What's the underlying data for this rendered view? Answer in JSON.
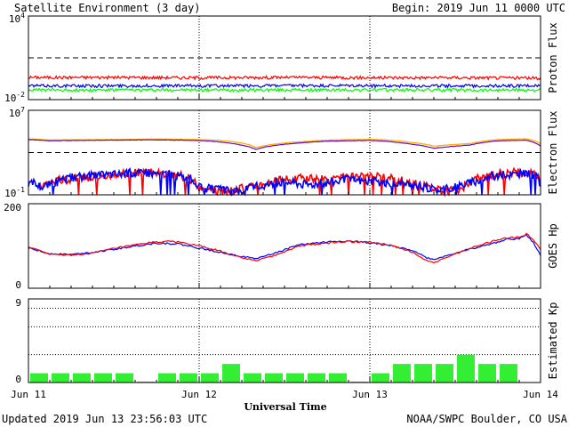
{
  "header": {
    "title": "Satellite Environment (3 day)",
    "begin": "Begin:  2019 Jun 11 0000 UTC"
  },
  "footer": {
    "updated": "Updated 2019 Jun 13 23:56:03 UTC",
    "credit": "NOAA/SWPC Boulder, CO USA"
  },
  "colors": {
    "red": "#ff0000",
    "blue": "#0000ff",
    "green": "#00ff00",
    "orange": "#ffa500",
    "purple": "#6a0dad",
    "kp_bar": "#33ee33"
  },
  "chart_data": [
    {
      "type": "line",
      "ylabel": "Proton Flux",
      "yscale": "log",
      "ylim": [
        0.01,
        10000
      ],
      "y_ticks": [
        {
          "value": 10000,
          "base": "10",
          "exp": "4"
        },
        {
          "value": 0.01,
          "base": "10",
          "exp": "-2"
        }
      ],
      "threshold": 10,
      "x_range_hours": [
        0,
        72
      ],
      "series": [
        {
          "color": "red",
          "x": [
            0,
            12,
            24,
            36,
            48,
            60,
            72
          ],
          "y": [
            0.4,
            0.4,
            0.38,
            0.4,
            0.38,
            0.38,
            0.36
          ]
        },
        {
          "color": "blue",
          "x": [
            0,
            12,
            24,
            36,
            48,
            60,
            72
          ],
          "y": [
            0.1,
            0.1,
            0.1,
            0.1,
            0.1,
            0.1,
            0.1
          ]
        },
        {
          "color": "green",
          "x": [
            0,
            12,
            24,
            36,
            48,
            60,
            72
          ],
          "y": [
            0.05,
            0.05,
            0.05,
            0.05,
            0.05,
            0.05,
            0.05
          ]
        }
      ]
    },
    {
      "type": "line",
      "ylabel": "Electron Flux",
      "yscale": "log",
      "ylim": [
        0.1,
        10000000
      ],
      "y_ticks": [
        {
          "value": 10000000,
          "base": "10",
          "exp": "7"
        },
        {
          "value": 0.1,
          "base": "10",
          "exp": "-1"
        }
      ],
      "threshold": 1000,
      "x_range_hours": [
        0,
        72
      ],
      "series": [
        {
          "color": "orange",
          "x": [
            0,
            3,
            6,
            12,
            18,
            24,
            27,
            30,
            32,
            36,
            42,
            48,
            50,
            54,
            57,
            62,
            66,
            70,
            72
          ],
          "y": [
            20000,
            15000,
            16000,
            17000,
            19000,
            17000,
            14000,
            8000,
            3000,
            8000,
            15000,
            18000,
            16000,
            9000,
            4000,
            7000,
            17000,
            20000,
            7000
          ]
        },
        {
          "color": "purple",
          "x": [
            0,
            3,
            6,
            12,
            18,
            24,
            27,
            30,
            32,
            36,
            42,
            48,
            50,
            54,
            57,
            62,
            66,
            70,
            72
          ],
          "y": [
            17000,
            13000,
            14000,
            15000,
            16000,
            14000,
            10000,
            5000,
            2000,
            6000,
            12000,
            14000,
            12000,
            6000,
            2500,
            5000,
            13000,
            15000,
            4000
          ]
        },
        {
          "color": "red",
          "x": [
            1.5,
            3,
            6,
            9,
            12,
            15,
            18,
            21.5,
            24,
            29,
            32,
            36,
            40,
            42,
            45,
            48,
            52,
            55,
            58,
            61,
            63,
            66,
            69,
            71,
            72
          ],
          "y": [
            0.4,
            2,
            3,
            5,
            8,
            12,
            12,
            6,
            0.3,
            0.2,
            0.8,
            3,
            4,
            2,
            5,
            6,
            2.5,
            0.8,
            0.2,
            0.3,
            3,
            10,
            14,
            11,
            0.5
          ]
        },
        {
          "color": "blue",
          "x": [
            0,
            2,
            4,
            6,
            9,
            12,
            15,
            18,
            21,
            24,
            27,
            30,
            33,
            36,
            39,
            42,
            45,
            48,
            51,
            54,
            57,
            60,
            63,
            66,
            69,
            71,
            72
          ],
          "y": [
            1.5,
            0.6,
            1.5,
            4,
            6,
            10,
            12,
            12,
            7,
            0.5,
            0.3,
            0.2,
            0.8,
            2,
            1,
            1.5,
            3,
            2,
            1.2,
            0.8,
            0.3,
            0.5,
            2,
            7,
            10,
            8,
            0.3
          ]
        }
      ]
    },
    {
      "type": "line",
      "ylabel": "GOES Hp",
      "ylim": [
        0,
        200
      ],
      "y_ticks": [
        200,
        0
      ],
      "x_range_hours": [
        0,
        72
      ],
      "series": [
        {
          "color": "blue",
          "x": [
            0,
            3,
            6,
            9,
            12,
            15,
            18,
            21,
            24,
            27,
            30,
            32,
            35,
            38,
            41,
            44,
            48,
            51,
            54,
            56,
            57,
            59,
            61,
            64,
            67,
            69,
            70,
            71,
            72
          ],
          "y": [
            95,
            82,
            80,
            85,
            92,
            100,
            107,
            105,
            95,
            85,
            75,
            70,
            85,
            103,
            108,
            112,
            108,
            100,
            90,
            72,
            68,
            78,
            88,
            100,
            115,
            118,
            125,
            108,
            78
          ]
        },
        {
          "color": "red",
          "x": [
            0,
            3,
            6,
            9,
            12,
            15,
            18,
            21,
            24,
            27,
            30,
            32,
            35,
            38,
            41,
            44,
            48,
            51,
            54,
            56,
            57,
            59,
            61,
            64,
            67,
            69,
            70,
            71,
            72
          ],
          "y": [
            98,
            80,
            78,
            83,
            94,
            102,
            110,
            110,
            100,
            88,
            72,
            65,
            80,
            100,
            105,
            110,
            110,
            102,
            85,
            65,
            60,
            75,
            87,
            105,
            118,
            122,
            128,
            115,
            92
          ]
        }
      ]
    },
    {
      "type": "bar",
      "ylabel": "Estimated Kp",
      "ylim": [
        0,
        9
      ],
      "y_ticks": [
        9,
        0
      ],
      "gridlines": [
        3,
        6,
        8
      ],
      "bar_hours": 3,
      "values": [
        1,
        1,
        1,
        1,
        1,
        0.1,
        1,
        1,
        1,
        2,
        1,
        1,
        1,
        1,
        1,
        0.1,
        1,
        2,
        2,
        2,
        3,
        2,
        2,
        0
      ]
    }
  ],
  "x_axis": {
    "label": "Universal Time",
    "ticks": [
      {
        "hour": 0,
        "label": "Jun 11"
      },
      {
        "hour": 24,
        "label": "Jun 12"
      },
      {
        "hour": 48,
        "label": "Jun 13"
      },
      {
        "hour": 72,
        "label": "Jun 14"
      }
    ]
  }
}
